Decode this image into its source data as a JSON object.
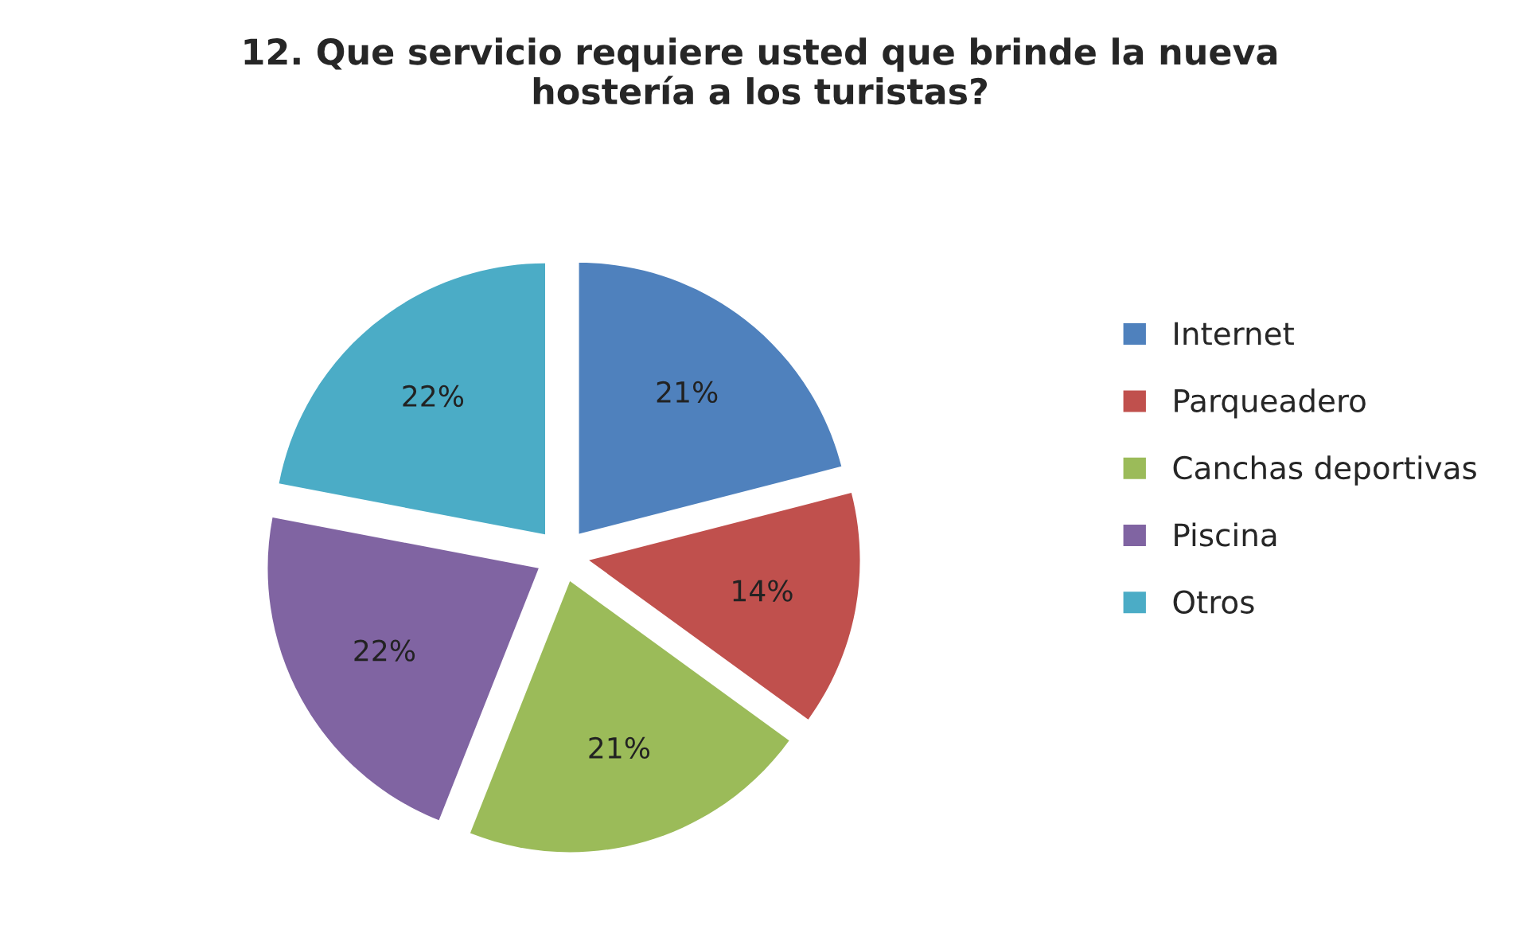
{
  "chart_data": {
    "type": "pie",
    "title": "12. Que servicio requiere usted que brinde la nueva\nhostería a los turistas?",
    "categories": [
      "Internet",
      "Parqueadero",
      "Canchas deportivas",
      "Piscina",
      "Otros"
    ],
    "values": [
      21,
      14,
      21,
      22,
      22
    ],
    "value_labels": [
      "21%",
      "14%",
      "21%",
      "22%",
      "22%"
    ],
    "colors": [
      "#4f81bd",
      "#c0504d",
      "#9bbb59",
      "#8064a2",
      "#4bacc6"
    ],
    "legend": "right"
  }
}
